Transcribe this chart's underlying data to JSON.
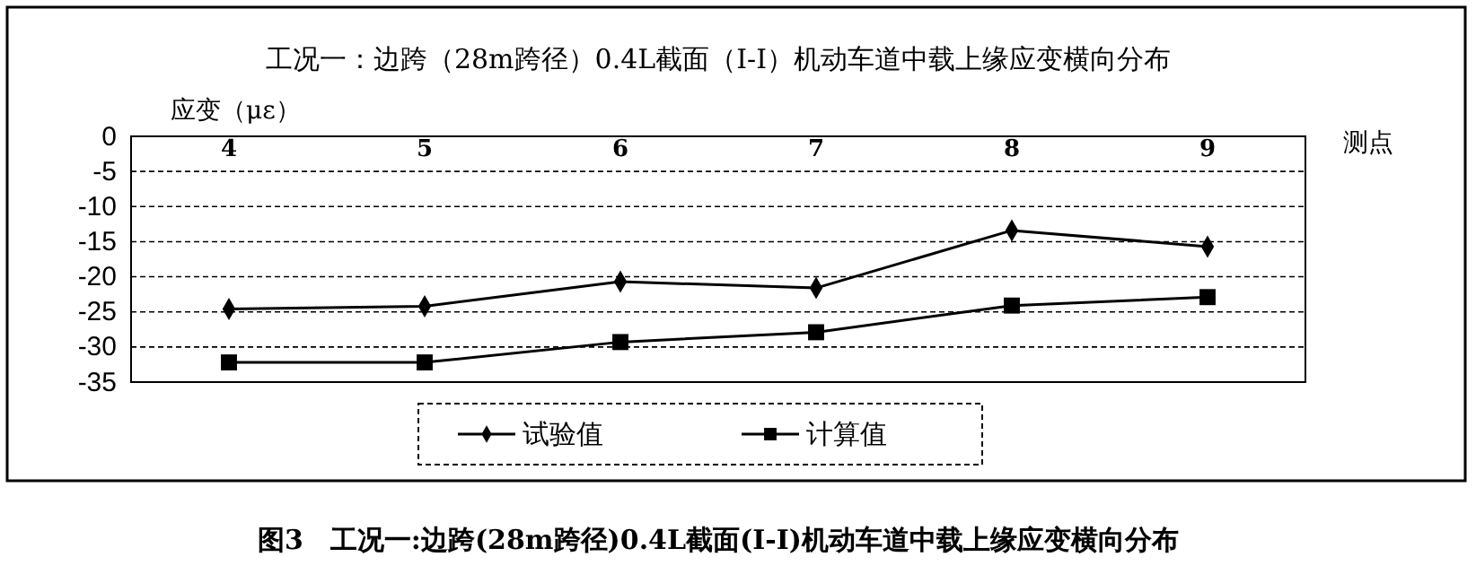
{
  "chart_data": {
    "type": "line",
    "title": "工况一：边跨（28m跨径）0.4L截面（I-I）机动车道中载上缘应变横向分布",
    "ylabel": "应变（με）",
    "xlabel": "测点",
    "categories": [
      "4",
      "5",
      "6",
      "7",
      "8",
      "9"
    ],
    "series": [
      {
        "name": "试验值",
        "color": "#000000",
        "marker": "diamond",
        "values": [
          -24.6,
          -24.2,
          -20.7,
          -21.6,
          -13.4,
          -15.7
        ]
      },
      {
        "name": "计算值",
        "color": "#000000",
        "marker": "square",
        "values": [
          -32.2,
          -32.2,
          -29.3,
          -27.9,
          -24.1,
          -22.9
        ]
      }
    ],
    "ylim": [
      -35,
      0
    ],
    "yticks": [
      -35,
      -30,
      -25,
      -20,
      -15,
      -10,
      -5,
      0
    ],
    "grid": "y",
    "legend": "bottom",
    "annotations": [
      "图3　工况一:边跨(28m跨径)0.4L截面(Ⅰ-Ⅰ)机动车道中载上缘应变横向分布"
    ]
  }
}
